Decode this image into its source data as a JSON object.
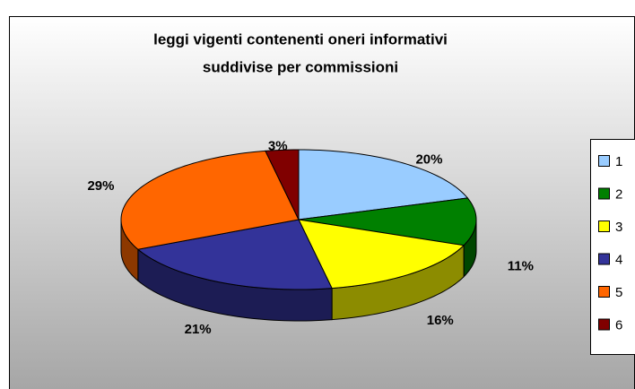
{
  "chart_data": {
    "type": "pie3d",
    "title": [
      "leggi vigenti contenenti oneri informativi",
      "suddivise per commissioni"
    ],
    "categories": [
      "1",
      "2",
      "3",
      "4",
      "5",
      "6"
    ],
    "values": [
      20,
      11,
      16,
      21,
      29,
      3
    ],
    "value_labels": [
      "20%",
      "11%",
      "16%",
      "21%",
      "29%",
      "3%"
    ],
    "colors": [
      "#99ccff",
      "#008000",
      "#ffff00",
      "#333399",
      "#ff6600",
      "#800000"
    ],
    "legend": "right"
  }
}
